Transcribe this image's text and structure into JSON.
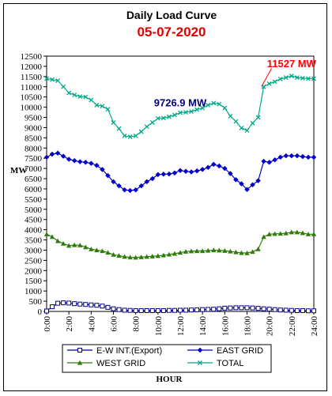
{
  "chart_data": {
    "type": "line",
    "title": "Daily Load Curve",
    "subtitle": "05-07-2020",
    "xlabel": "HOUR",
    "ylabel": "MW",
    "xlim": [
      0,
      24
    ],
    "ylim": [
      0,
      12500
    ],
    "x_ticks": [
      "0:00",
      "2:00",
      "4:00",
      "6:00",
      "8:00",
      "10:00",
      "12:00",
      "14:00",
      "16:00",
      "18:00",
      "20:00",
      "22:00",
      "24:00"
    ],
    "y_ticks": [
      0,
      500,
      1000,
      1500,
      2000,
      2500,
      3000,
      3500,
      4000,
      4500,
      5000,
      5500,
      6000,
      6500,
      7000,
      7500,
      8000,
      8500,
      9000,
      9500,
      10000,
      10500,
      11000,
      11500,
      12000,
      12500
    ],
    "x": [
      0,
      0.5,
      1,
      1.5,
      2,
      2.5,
      3,
      3.5,
      4,
      4.5,
      5,
      5.5,
      6,
      6.5,
      7,
      7.5,
      8,
      8.5,
      9,
      9.5,
      10,
      10.5,
      11,
      11.5,
      12,
      12.5,
      13,
      13.5,
      14,
      14.5,
      15,
      15.5,
      16,
      16.5,
      17,
      17.5,
      18,
      18.5,
      19,
      19.5,
      20,
      20.5,
      21,
      21.5,
      22,
      22.5,
      23,
      23.5,
      24
    ],
    "series": [
      {
        "name": "E-W INT.(Export)",
        "color": "#000080",
        "marker": "square",
        "values": [
          20,
          230,
          400,
          420,
          410,
          380,
          360,
          340,
          320,
          300,
          260,
          200,
          130,
          90,
          60,
          50,
          40,
          40,
          40,
          40,
          40,
          40,
          50,
          50,
          60,
          60,
          70,
          80,
          90,
          100,
          110,
          130,
          160,
          170,
          180,
          180,
          180,
          170,
          150,
          130,
          110,
          90,
          70,
          60,
          50,
          40,
          40,
          30,
          30
        ]
      },
      {
        "name": "EAST GRID",
        "color": "#0000cc",
        "marker": "diamond",
        "values": [
          7550,
          7700,
          7750,
          7600,
          7450,
          7380,
          7330,
          7300,
          7250,
          7150,
          6950,
          6650,
          6350,
          6150,
          5950,
          5920,
          5950,
          6150,
          6350,
          6500,
          6700,
          6720,
          6730,
          6780,
          6900,
          6860,
          6830,
          6880,
          6950,
          7050,
          7200,
          7120,
          7000,
          6750,
          6450,
          6250,
          5970,
          6200,
          6400,
          7350,
          7300,
          7420,
          7550,
          7620,
          7620,
          7620,
          7580,
          7550,
          7550
        ]
      },
      {
        "name": "WEST GRID",
        "color": "#2e7d0a",
        "marker": "triangle",
        "values": [
          3780,
          3650,
          3450,
          3320,
          3220,
          3250,
          3240,
          3150,
          3050,
          3000,
          2960,
          2880,
          2780,
          2730,
          2680,
          2650,
          2640,
          2660,
          2680,
          2700,
          2720,
          2750,
          2790,
          2830,
          2880,
          2930,
          2950,
          2960,
          2960,
          2980,
          3000,
          2990,
          2970,
          2940,
          2900,
          2870,
          2860,
          2920,
          3050,
          3650,
          3780,
          3800,
          3810,
          3830,
          3880,
          3880,
          3840,
          3780,
          3780
        ]
      },
      {
        "name": "TOTAL",
        "color": "#00aa88",
        "marker": "x",
        "values": [
          11400,
          11350,
          11300,
          11000,
          10700,
          10600,
          10520,
          10500,
          10350,
          10100,
          10050,
          9900,
          9250,
          8950,
          8600,
          8550,
          8600,
          8800,
          9050,
          9250,
          9450,
          9470,
          9530,
          9620,
          9730,
          9750,
          9790,
          9880,
          9960,
          10100,
          10200,
          10150,
          9960,
          9560,
          9300,
          8980,
          8860,
          9220,
          9500,
          11000,
          11150,
          11250,
          11380,
          11450,
          11527,
          11450,
          11420,
          11400,
          11400
        ]
      }
    ],
    "annotations": [
      {
        "text": "9726.9 MW",
        "color": "#000080",
        "x": 12.0,
        "y": 10050
      },
      {
        "text": "11527 MW",
        "color": "#ff0000",
        "x": 22.0,
        "y": 11950
      }
    ],
    "annotation_pointer": {
      "color": "#ff0000",
      "from": [
        19.3,
        11000
      ],
      "to": [
        20.2,
        11900
      ]
    },
    "plot_background": "#ffffff",
    "grid": false,
    "legend_position": "bottom"
  }
}
